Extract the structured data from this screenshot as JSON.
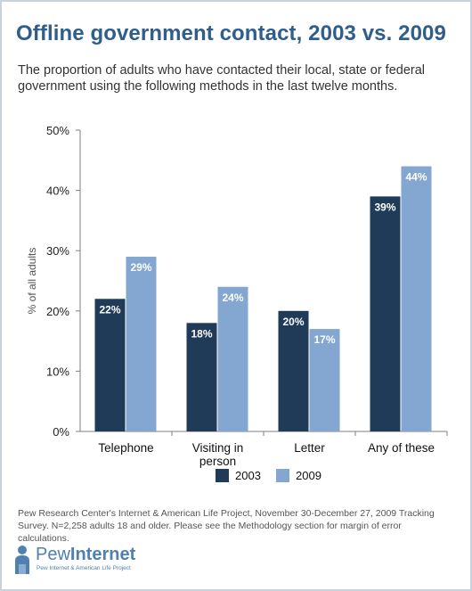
{
  "header": {
    "title": "Offline government contact, 2003 vs. 2009",
    "subtitle": "The proportion of adults who have contacted their local, state or federal government using the following methods in the last twelve months."
  },
  "chart_data": {
    "type": "bar",
    "categories": [
      "Telephone",
      "Visiting in person",
      "Letter",
      "Any of these"
    ],
    "series": [
      {
        "name": "2003",
        "values": [
          22,
          18,
          20,
          39
        ],
        "color": "#203b58"
      },
      {
        "name": "2009",
        "values": [
          29,
          24,
          17,
          44
        ],
        "color": "#84a7d1"
      }
    ],
    "ylabel": "% of all adults",
    "xlabel": "",
    "ylim": [
      0,
      50
    ],
    "yticks": [
      "0%",
      "10%",
      "20%",
      "30%",
      "40%",
      "50%"
    ],
    "value_suffix": "%",
    "legend_position": "bottom",
    "grid": false
  },
  "footnote": "Pew Research Center's Internet & American Life Project, November 30-December 27, 2009 Tracking Survey. N=2,258 adults 18 and older. Please see the Methodology section for margin of error calculations.",
  "logo": {
    "name_light": "Pew",
    "name_bold": "Internet",
    "tagline": "Pew Internet & American Life Project",
    "icon": "person-silhouette-icon"
  }
}
